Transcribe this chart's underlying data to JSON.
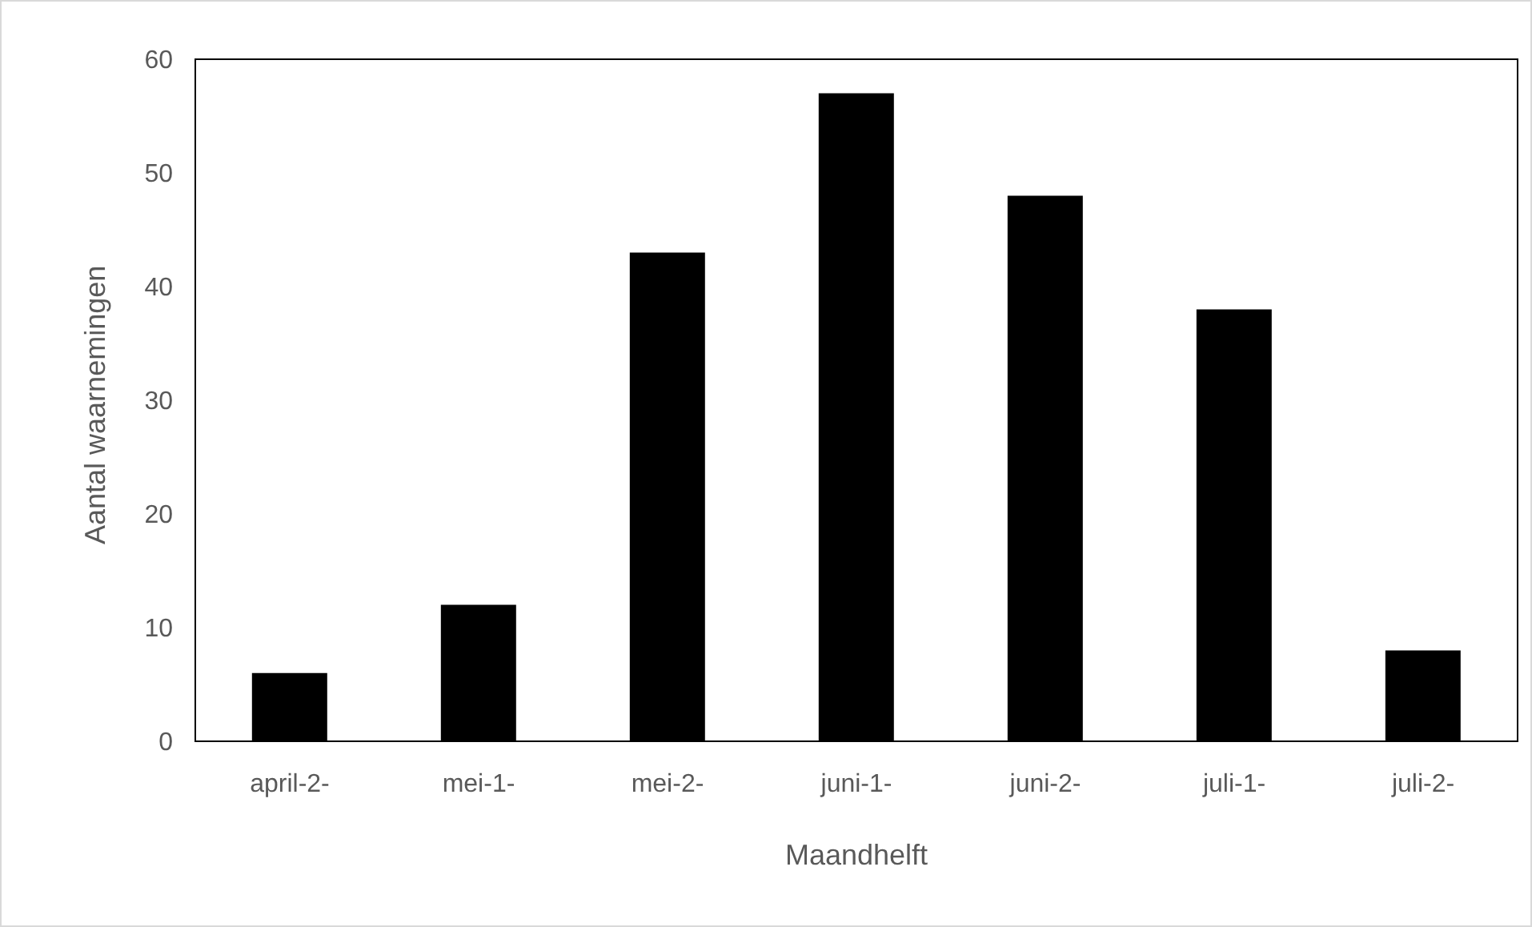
{
  "chart_data": {
    "type": "bar",
    "xlabel": "Maandhelft",
    "ylabel": "Aantal waarnemingen",
    "categories": [
      "april-2-",
      "mei-1-",
      "mei-2-",
      "juni-1-",
      "juni-2-",
      "juli-1-",
      "juli-2-"
    ],
    "values": [
      6,
      12,
      43,
      57,
      48,
      38,
      8
    ],
    "color": "#000000",
    "ylim": [
      0,
      60
    ],
    "yticks": [
      0,
      10,
      20,
      30,
      40,
      50,
      60
    ],
    "grid": false
  }
}
